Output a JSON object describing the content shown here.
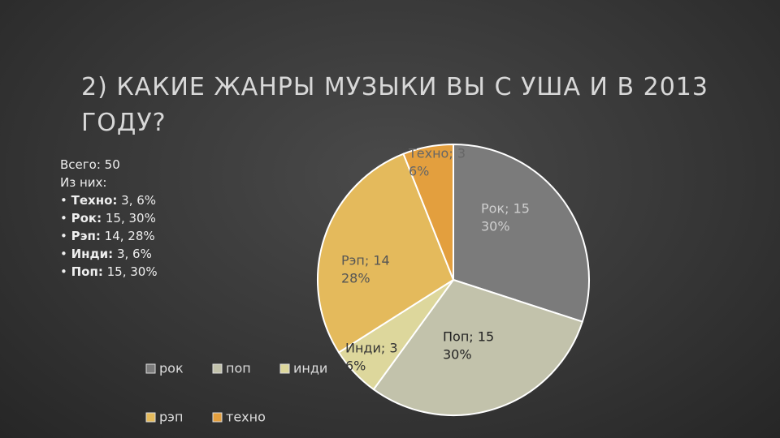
{
  "chart_data": {
    "type": "pie",
    "title": "2) КАКИЕ ЖАНРЫ МУЗЫКИ ВЫ С УША И В 2013 ГОДУ?",
    "categories": [
      "рок",
      "поп",
      "инди",
      "рэп",
      "техно"
    ],
    "values": [
      15,
      15,
      3,
      14,
      3
    ],
    "value_labels": [
      "Рок; 15",
      "Поп; 15",
      "Инди; 3",
      "Рэп; 14",
      "Техно; 3"
    ],
    "percent_labels": [
      "30%",
      "30%",
      "6%",
      "28%",
      "6%"
    ],
    "colors": [
      "#7b7b7b",
      "#c2c2ab",
      "#ddd79c",
      "#e4ba5c",
      "#e39f3e"
    ],
    "legend": "bottom-left"
  },
  "notes": {
    "total": "Всего: 50",
    "of_which": "Из них:",
    "items": [
      {
        "name": "Техно:",
        "text": "3, 6%"
      },
      {
        "name": "Рок:",
        "text": "15, 30%"
      },
      {
        "name": "Рэп:",
        "text": "14, 28%"
      },
      {
        "name": "Инди:",
        "text": "3, 6%"
      },
      {
        "name": "Поп:",
        "text": "15, 30%"
      }
    ]
  }
}
